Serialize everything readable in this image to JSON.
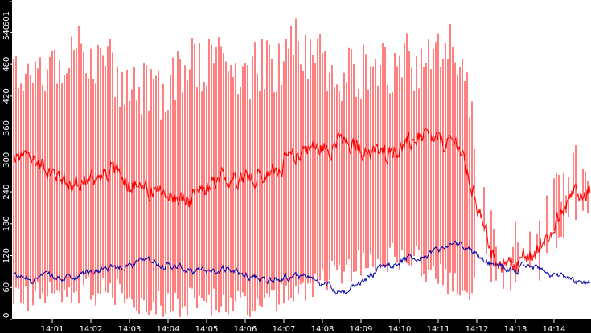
{
  "chart_data": {
    "type": "line",
    "title": "",
    "xlabel": "",
    "ylabel": "",
    "ylim": [
      0,
      601
    ],
    "grid": false,
    "legend": null,
    "y_ticks": [
      0,
      60,
      120,
      180,
      240,
      300,
      360,
      420,
      480,
      540,
      601
    ],
    "x_ticks": [
      "14:01",
      "14:02",
      "14:03",
      "14:04",
      "14:05",
      "14:06",
      "14:07",
      "14:08",
      "14:09",
      "14:10",
      "14:11",
      "14:12",
      "14:13",
      "14:14"
    ],
    "colors": {
      "background": "#ffffff",
      "axis_bg": "#000000",
      "range": "#ff0000",
      "mid": "#ff0000",
      "blue": "#0000aa"
    },
    "series": [
      {
        "name": "range_high",
        "style": "vertical-bars",
        "color": "#ff0000",
        "segments_by_minute": [
          {
            "minute": "14:00-14:01",
            "high_avg": 470,
            "low_avg": 40
          },
          {
            "minute": "14:01-14:02",
            "high_avg": 500,
            "low_avg": 60
          },
          {
            "minute": "14:02-14:03",
            "high_avg": 470,
            "low_avg": 50
          },
          {
            "minute": "14:03-14:04",
            "high_avg": 420,
            "low_avg": 35
          },
          {
            "minute": "14:04-14:05",
            "high_avg": 470,
            "low_avg": 30
          },
          {
            "minute": "14:05-14:06",
            "high_avg": 480,
            "low_avg": 30
          },
          {
            "minute": "14:06-14:07",
            "high_avg": 470,
            "low_avg": 30
          },
          {
            "minute": "14:07-14:08",
            "high_avg": 520,
            "low_avg": 60
          },
          {
            "minute": "14:08-14:09",
            "high_avg": 450,
            "low_avg": 90
          },
          {
            "minute": "14:09-14:10",
            "high_avg": 480,
            "low_avg": 120
          },
          {
            "minute": "14:10-14:11",
            "high_avg": 480,
            "low_avg": 110
          },
          {
            "minute": "14:11-14:12",
            "high_avg": 500,
            "low_avg": 60
          },
          {
            "minute": "14:12-14:13",
            "high_avg": 140,
            "low_avg": 60
          },
          {
            "minute": "14:13-14:14",
            "high_avg": 260,
            "low_avg": 110
          },
          {
            "minute": "14:14-14:15",
            "high_avg": 270,
            "low_avg": 180
          }
        ]
      },
      {
        "name": "mid_red",
        "style": "line",
        "color": "#ff0000",
        "values_by_minute": [
          300,
          250,
          280,
          240,
          220,
          270,
          270,
          320,
          330,
          310,
          340,
          330,
          95,
          120,
          240
        ]
      },
      {
        "name": "blue",
        "style": "line",
        "color": "#0000aa",
        "values_by_minute": [
          80,
          75,
          100,
          110,
          90,
          95,
          75,
          80,
          50,
          100,
          120,
          145,
          95,
          100,
          70
        ]
      }
    ]
  }
}
